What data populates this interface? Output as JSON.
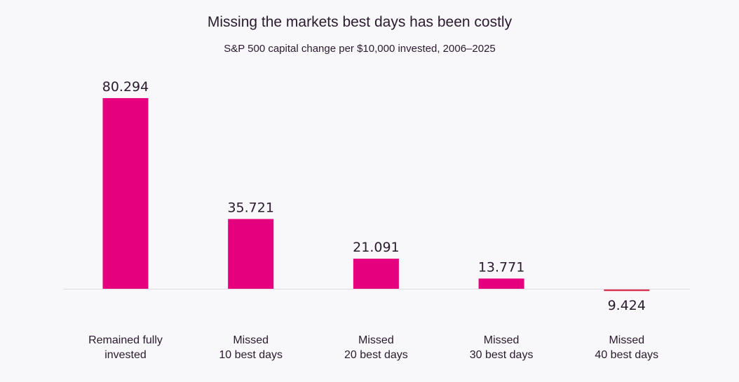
{
  "chart_data": {
    "type": "bar",
    "title": "Missing the markets best days has been costly",
    "subtitle": "S&P 500 capital change per $10,000 invested, 2006–2025",
    "categories": [
      [
        "Remained fully",
        "invested"
      ],
      [
        "Missed",
        "10 best days"
      ],
      [
        "Missed",
        "20 best days"
      ],
      [
        "Missed",
        "30 best days"
      ],
      [
        "Missed",
        "40 best days"
      ]
    ],
    "values": [
      80.294,
      35.721,
      21.091,
      13.771,
      9.424
    ],
    "value_labels": [
      "80.294",
      "35.721",
      "21.091",
      "13.771",
      "9.424"
    ],
    "baseline": 10,
    "xlabel": "",
    "ylabel": "",
    "ylim": [
      10,
      85
    ],
    "grid": false,
    "colors": {
      "above": "#e5007e",
      "below": "#d9304f",
      "axis": "#e2d8e2"
    }
  }
}
